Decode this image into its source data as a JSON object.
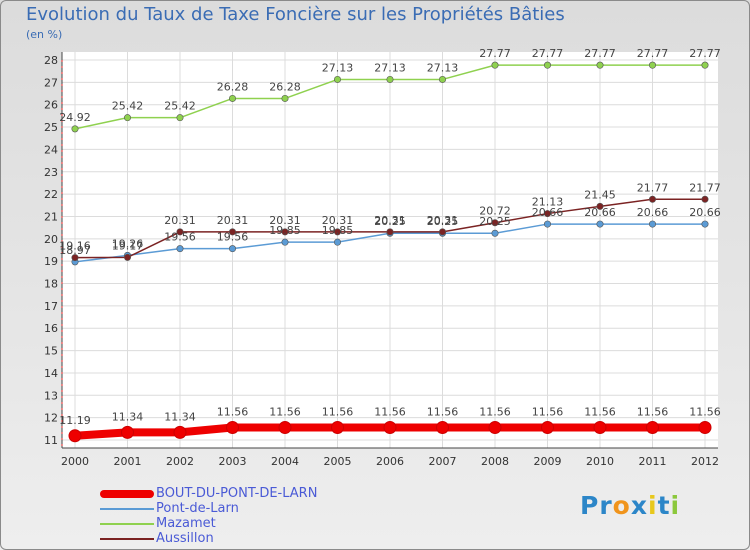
{
  "title": "Evolution du Taux de Taxe Foncière sur les Propriétés Bâties",
  "subtitle": "(en %)",
  "logo": {
    "text": "Proxiti",
    "colors": [
      "#2c86c8",
      "#2c86c8",
      "#f0941c",
      "#2c86c8",
      "#e8c81c",
      "#2c86c8",
      "#8cc83c"
    ]
  },
  "chart_data": {
    "type": "line",
    "title": "Evolution du Taux de Taxe Foncière sur les Propriétés Bâties",
    "ylabel": "(en %)",
    "xlabel": "",
    "x": [
      "2000",
      "2001",
      "2002",
      "2003",
      "2004",
      "2005",
      "2006",
      "2007",
      "2008",
      "2009",
      "2010",
      "2011",
      "2012"
    ],
    "ylim": [
      11,
      28
    ],
    "yticks": [
      "11",
      "12",
      "13",
      "14",
      "15",
      "16",
      "17",
      "18",
      "19",
      "20",
      "21",
      "22",
      "23",
      "24",
      "25",
      "26",
      "27",
      "28"
    ],
    "grid": true,
    "legend_position": "bottom-left",
    "series": [
      {
        "name": "BOUT-DU-PONT-DE-LARN",
        "color": "#ee0000",
        "emphasis": "thick",
        "values": [
          11.19,
          11.34,
          11.34,
          11.56,
          11.56,
          11.56,
          11.56,
          11.56,
          11.56,
          11.56,
          11.56,
          11.56,
          11.56
        ],
        "labels": [
          "11.19",
          "11.34",
          "11.34",
          "11.56",
          "11.56",
          "11.56",
          "11.56",
          "11.56",
          "11.56",
          "11.56",
          "11.56",
          "11.56",
          "11.56"
        ]
      },
      {
        "name": "Pont-de-Larn",
        "color": "#5b9bd5",
        "emphasis": "normal",
        "values": [
          18.97,
          19.26,
          19.56,
          19.56,
          19.85,
          19.85,
          20.25,
          20.25,
          20.25,
          20.66,
          20.66,
          20.66,
          20.66
        ],
        "labels": [
          "18.97",
          "19.26",
          "19.56",
          "19.56",
          "19.85",
          "19.85",
          "20.25",
          "20.25",
          "20.25",
          "20.66",
          "20.66",
          "20.66",
          "20.66"
        ]
      },
      {
        "name": "Mazamet",
        "color": "#8fd14f",
        "emphasis": "normal",
        "values": [
          24.92,
          25.42,
          25.42,
          26.28,
          26.28,
          27.13,
          27.13,
          27.13,
          27.77,
          27.77,
          27.77,
          27.77,
          27.77
        ],
        "labels": [
          "24.92",
          "25.42",
          "25.42",
          "26.28",
          "26.28",
          "27.13",
          "27.13",
          "27.13",
          "27.77",
          "27.77",
          "27.77",
          "27.77",
          "27.77"
        ]
      },
      {
        "name": "Aussillon",
        "color": "#7b2323",
        "emphasis": "normal",
        "values": [
          19.16,
          19.17,
          20.31,
          20.31,
          20.31,
          20.31,
          20.31,
          20.31,
          20.72,
          21.13,
          21.45,
          21.77,
          21.77
        ],
        "labels": [
          "19.16",
          "19.17",
          "20.31",
          "20.31",
          "20.31",
          "20.31",
          "20.31",
          "20.31",
          "20.72",
          "21.13",
          "21.45",
          "21.77",
          "21.77"
        ]
      }
    ]
  }
}
